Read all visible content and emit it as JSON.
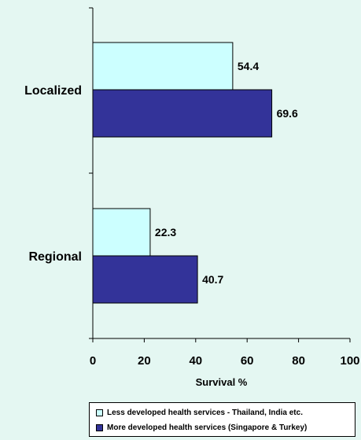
{
  "chart_data": {
    "type": "bar",
    "orientation": "horizontal",
    "categories": [
      "Localized",
      "Regional"
    ],
    "series": [
      {
        "name": "Less developed health services - Thailand, India etc.",
        "values": [
          54.4,
          22.3
        ],
        "color": "#ccffff"
      },
      {
        "name": "More developed health services (Singapore & Turkey)",
        "values": [
          69.6,
          40.7
        ],
        "color": "#333399"
      }
    ],
    "xlabel": "Survival %",
    "xlim": [
      0,
      100
    ],
    "xticks": [
      "0",
      "20",
      "40",
      "60",
      "80",
      "100"
    ],
    "data_labels": true,
    "legend_position": "bottom",
    "grid": false
  }
}
